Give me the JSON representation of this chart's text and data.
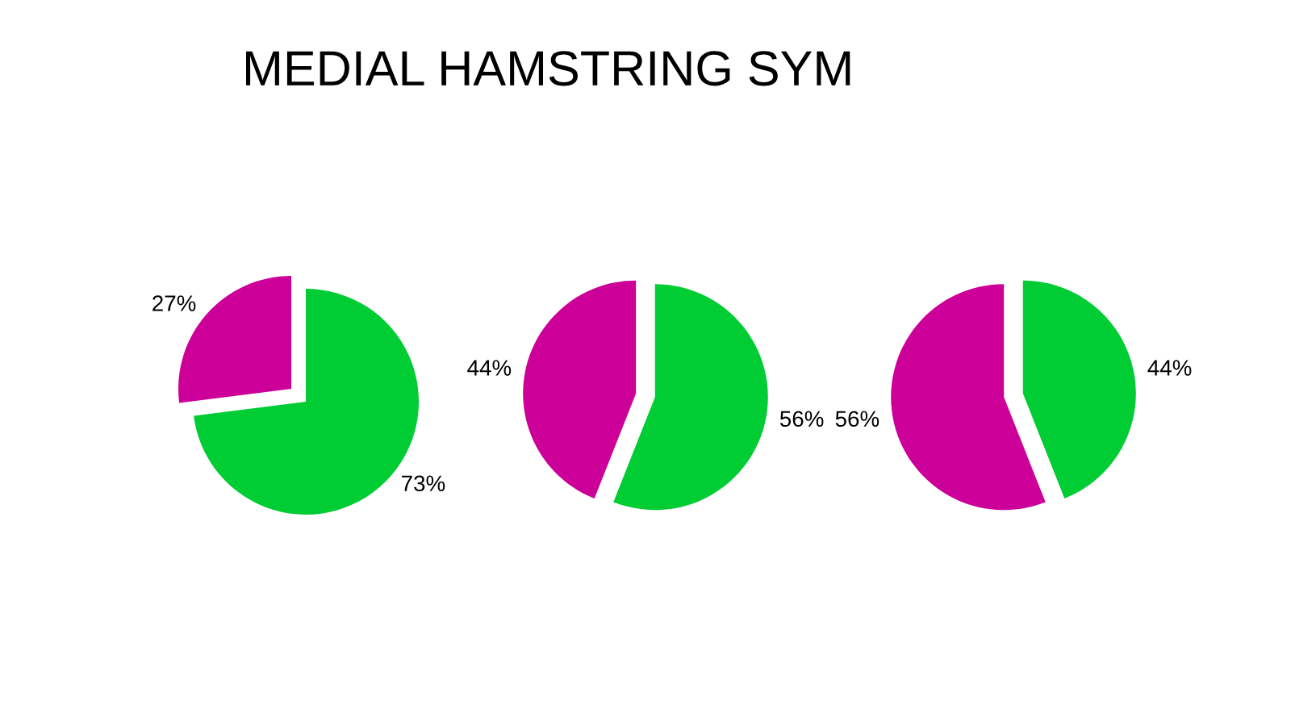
{
  "chart_data": [
    {
      "type": "pie",
      "title": "MEDIAL HAMSTRING SYM",
      "categories": [
        null,
        null
      ],
      "values": [
        73,
        27
      ],
      "colors": [
        "#00cc33",
        "#cc0099"
      ],
      "value_labels": [
        "73%",
        "27%"
      ]
    },
    {
      "type": "pie",
      "categories": [
        null,
        null
      ],
      "values": [
        56,
        44
      ],
      "colors": [
        "#00cc33",
        "#cc0099"
      ],
      "value_labels": [
        "56%",
        "44%"
      ]
    },
    {
      "type": "pie",
      "categories": [
        null,
        null
      ],
      "values": [
        44,
        56
      ],
      "colors": [
        "#00cc33",
        "#cc0099"
      ],
      "value_labels": [
        "44%",
        "56%"
      ]
    }
  ]
}
